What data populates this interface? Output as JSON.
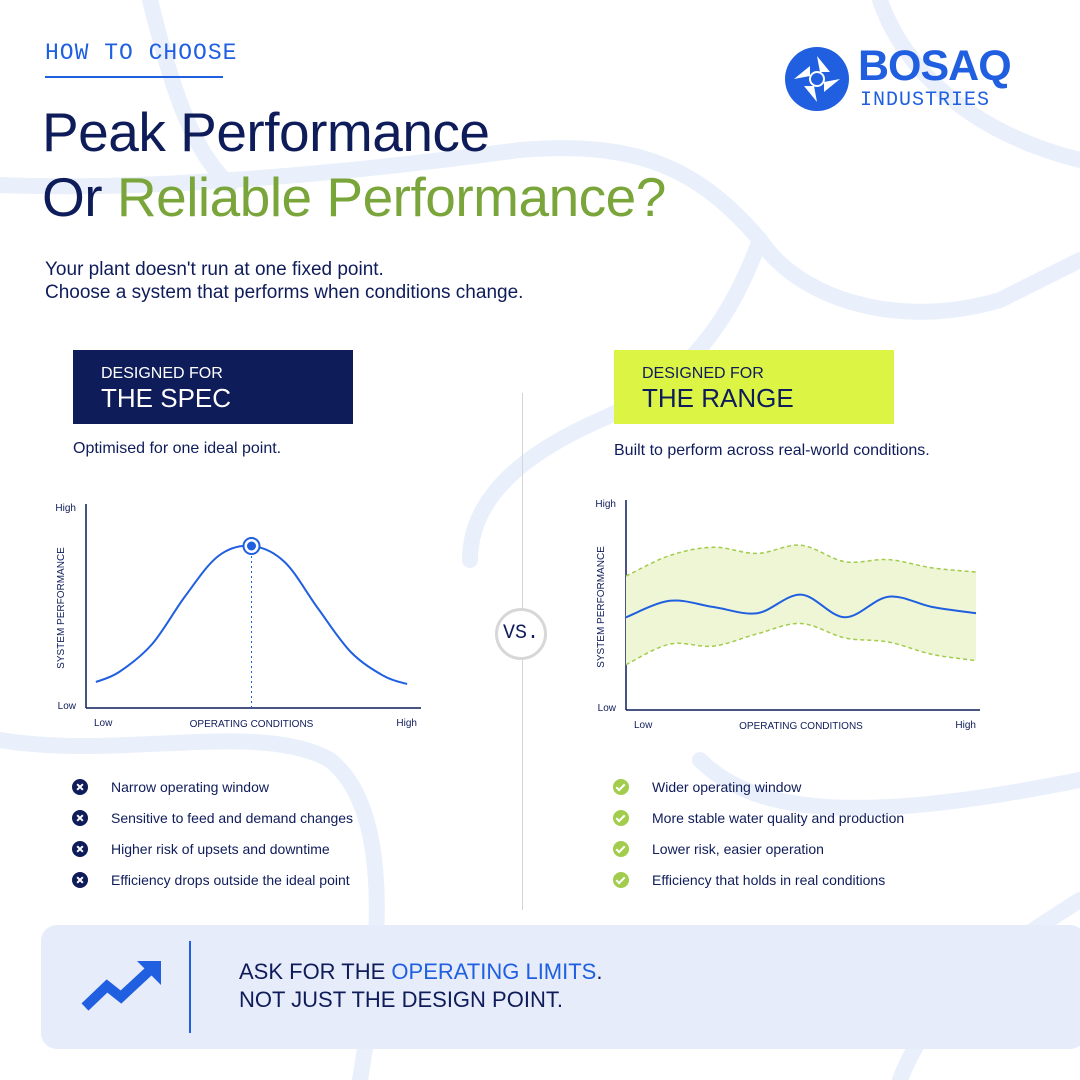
{
  "header": {
    "eyebrow": "HOW TO CHOOSE",
    "title_line1": "Peak Performance",
    "title_line2_prefix": "Or ",
    "title_line2_highlight": "Reliable Performance?",
    "intro_line1": "Your plant doesn't run at one fixed point.",
    "intro_line2": "Choose a system that performs when conditions change."
  },
  "logo": {
    "name": "BOSAQ",
    "sub": "INDUSTRIES"
  },
  "left": {
    "badge_small": "DESIGNED FOR",
    "badge_big": "THE SPEC",
    "description": "Optimised for one ideal point.",
    "points": [
      "Narrow operating window",
      "Sensitive to feed and demand changes",
      "Higher risk of upsets and downtime",
      "Efficiency drops outside the ideal point"
    ]
  },
  "right": {
    "badge_small": "DESIGNED FOR",
    "badge_big": "THE RANGE",
    "description": "Built to perform across real-world conditions.",
    "points": [
      "Wider operating window",
      "More stable water quality and production",
      "Lower risk, easier operation",
      "Efficiency that holds in real conditions"
    ]
  },
  "vs_label": "VS.",
  "footer": {
    "line1_prefix": "ASK FOR THE ",
    "line1_highlight": "OPERATING LIMITS",
    "line1_suffix": ".",
    "line2": "NOT JUST THE DESIGN POINT."
  },
  "colors": {
    "navy": "#0f1c5a",
    "blue": "#1f5fe0",
    "green_text": "#7aa53a",
    "lime": "#dcf545",
    "band_fill": "#eef6d6",
    "band_line": "#a2cc4c",
    "check_green": "#a2cc4c"
  },
  "icons": {
    "left_points": "x-circle-icon",
    "right_points": "check-circle-icon",
    "footer": "trend-up-arrow-icon",
    "logo": "aperture-logo-icon"
  },
  "chart_data": [
    {
      "type": "line",
      "title": "",
      "xlabel": "OPERATING CONDITIONS",
      "ylabel": "SYSTEM PERFORMANCE",
      "x_ticks": [
        "Low",
        "High"
      ],
      "y_ticks": [
        "Low",
        "High"
      ],
      "xlim": [
        0,
        1
      ],
      "ylim": [
        0,
        1
      ],
      "grid": false,
      "series": [
        {
          "x": [
            0.03,
            0.1,
            0.2,
            0.3,
            0.4,
            0.5,
            0.6,
            0.7,
            0.8,
            0.9,
            0.97
          ],
          "y": [
            0.13,
            0.18,
            0.32,
            0.56,
            0.76,
            0.81,
            0.73,
            0.5,
            0.28,
            0.16,
            0.12
          ]
        }
      ],
      "annotations": [
        {
          "type": "peak-marker",
          "x": 0.5,
          "y": 0.81,
          "dashed_to_axis": true
        }
      ]
    },
    {
      "type": "area",
      "title": "",
      "xlabel": "OPERATING CONDITIONS",
      "ylabel": "SYSTEM PERFORMANCE",
      "x_ticks": [
        "Low",
        "High"
      ],
      "y_ticks": [
        "Low",
        "High"
      ],
      "xlim": [
        0,
        1
      ],
      "ylim": [
        0,
        1
      ],
      "grid": false,
      "series": [
        {
          "x": [
            0,
            0.125,
            0.25,
            0.375,
            0.5,
            0.625,
            0.75,
            0.875,
            1
          ],
          "y": [
            0.45,
            0.53,
            0.5,
            0.47,
            0.56,
            0.45,
            0.55,
            0.5,
            0.47
          ]
        }
      ],
      "band": {
        "x": [
          0,
          0.125,
          0.25,
          0.375,
          0.5,
          0.625,
          0.75,
          0.875,
          1
        ],
        "upper": [
          0.65,
          0.75,
          0.79,
          0.76,
          0.8,
          0.72,
          0.73,
          0.69,
          0.67
        ],
        "lower": [
          0.22,
          0.32,
          0.31,
          0.37,
          0.42,
          0.35,
          0.33,
          0.27,
          0.24
        ]
      }
    }
  ]
}
